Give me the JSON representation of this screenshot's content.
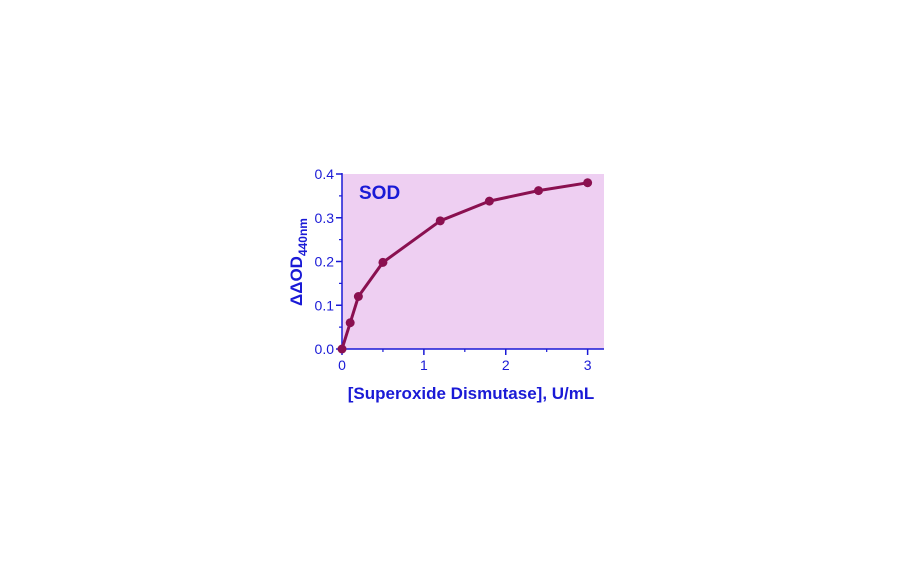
{
  "chart_data": {
    "type": "line",
    "annotation": "SOD",
    "xlabel": "[Superoxide Dismutase], U/mL",
    "ylabel_main": "ΔΔOD",
    "ylabel_sub": "440nm",
    "xlim": [
      0,
      3.2
    ],
    "ylim": [
      0,
      0.4
    ],
    "x_ticks": [
      0,
      1,
      2,
      3
    ],
    "y_ticks": [
      "0.0",
      "0.1",
      "0.2",
      "0.3",
      "0.4"
    ],
    "colors": {
      "plot_bg": "#eecff2",
      "axis": "#1a1ad6",
      "series": "#8a1050"
    },
    "series": [
      {
        "x": [
          0,
          0.1,
          0.2,
          0.5,
          1.2,
          1.8,
          2.4,
          3.0
        ],
        "y": [
          0.0,
          0.06,
          0.12,
          0.198,
          0.293,
          0.338,
          0.362,
          0.38
        ]
      }
    ]
  }
}
